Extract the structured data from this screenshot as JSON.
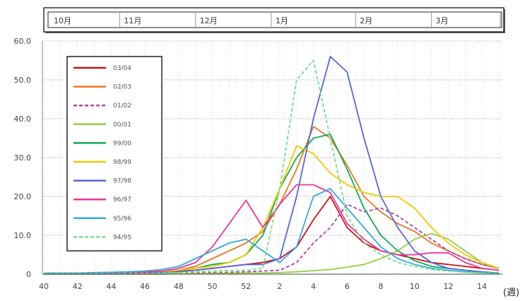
{
  "chart_data": {
    "type": "line",
    "months": [
      "10月",
      "11月",
      "12月",
      "1月",
      "2月",
      "3月"
    ],
    "x_tick_labels": [
      "40",
      "42",
      "44",
      "46",
      "48",
      "50",
      "52",
      "2",
      "4",
      "6",
      "8",
      "10",
      "12",
      "14"
    ],
    "y_tick_labels": [
      "0",
      "10.0",
      "20.0",
      "30.0",
      "40.0",
      "50.0",
      "60.0"
    ],
    "x_unit_label": "(週)",
    "ylim": [
      0,
      60
    ],
    "grid": true,
    "legend_position": "top-left",
    "weeks": [
      "40",
      "41",
      "42",
      "43",
      "44",
      "45",
      "46",
      "47",
      "48",
      "49",
      "50",
      "51",
      "52",
      "1",
      "2",
      "3",
      "4",
      "5",
      "6",
      "7",
      "8",
      "9",
      "10",
      "11",
      "12",
      "13",
      "14",
      "15"
    ],
    "series": [
      {
        "name": "03/04",
        "color": "#cc1111",
        "dash": "solid",
        "values": [
          0.2,
          0.3,
          0.3,
          0.3,
          0.3,
          0.4,
          0.4,
          0.5,
          0.8,
          1,
          1.5,
          2,
          2.5,
          3,
          4,
          7,
          14,
          20,
          12,
          8,
          6,
          5,
          4,
          3,
          2.5,
          2,
          1.5,
          1
        ]
      },
      {
        "name": "02/03",
        "color": "#ee7722",
        "dash": "solid",
        "values": [
          0.2,
          0.2,
          0.2,
          0.3,
          0.3,
          0.4,
          0.6,
          0.8,
          1,
          2,
          4,
          6,
          8,
          11,
          18,
          27,
          38,
          35,
          28,
          20,
          16,
          13,
          11,
          8,
          6,
          4,
          2.5,
          1.5
        ]
      },
      {
        "name": "01/02",
        "color": "#aa44aa",
        "dash": "dashed",
        "values": [
          0,
          0,
          0,
          0,
          0,
          0.1,
          0.1,
          0.2,
          0.3,
          0.3,
          0.4,
          0.5,
          0.6,
          0.8,
          1,
          3,
          8,
          12,
          18,
          16,
          17,
          15,
          12,
          9,
          6,
          4,
          2.5,
          1.5
        ]
      },
      {
        "name": "00/01",
        "color": "#99cc44",
        "dash": "solid",
        "values": [
          0,
          0,
          0,
          0,
          0,
          0,
          0,
          0,
          0.1,
          0.1,
          0.2,
          0.2,
          0.3,
          0.3,
          0.4,
          0.6,
          0.9,
          1.2,
          1.8,
          2.5,
          4,
          6,
          9,
          10.5,
          9,
          6,
          3,
          1.5
        ]
      },
      {
        "name": "99/00",
        "color": "#11aa55",
        "dash": "solid",
        "values": [
          0.1,
          0.1,
          0.1,
          0.2,
          0.2,
          0.3,
          0.4,
          0.6,
          1,
          1.5,
          2.5,
          3,
          5,
          10,
          22,
          30,
          35,
          36,
          27,
          17,
          10,
          6,
          3.5,
          2,
          1.5,
          1,
          0.6,
          0.3
        ]
      },
      {
        "name": "98/99",
        "color": "#eecc00",
        "dash": "solid",
        "values": [
          0.1,
          0.1,
          0.1,
          0.2,
          0.2,
          0.3,
          0.4,
          0.6,
          1,
          1.5,
          2,
          3,
          5,
          12,
          22,
          33,
          31,
          26,
          23,
          21,
          20,
          20,
          17,
          12,
          8,
          5,
          3,
          1.5
        ]
      },
      {
        "name": "97/98",
        "color": "#5566dd",
        "dash": "solid",
        "values": [
          0.1,
          0.1,
          0.1,
          0.1,
          0.2,
          0.2,
          0.3,
          0.4,
          0.6,
          1,
          1.5,
          2,
          2.5,
          2.5,
          4,
          20,
          40,
          56,
          52,
          35,
          20,
          12,
          6,
          3,
          1.5,
          1,
          0.5,
          0.3
        ]
      },
      {
        "name": "96/97",
        "color": "#ee3399",
        "dash": "solid",
        "values": [
          0.2,
          0.2,
          0.2,
          0.3,
          0.3,
          0.4,
          0.5,
          0.8,
          1.5,
          3,
          7,
          13,
          19,
          12,
          18,
          23,
          23,
          21,
          13,
          9,
          6,
          5,
          5,
          5.5,
          5.5,
          3,
          1.5,
          1
        ]
      },
      {
        "name": "95/96",
        "color": "#33aadd",
        "dash": "solid",
        "values": [
          0.3,
          0.3,
          0.3,
          0.4,
          0.5,
          0.6,
          0.8,
          1.2,
          2,
          4,
          6,
          8,
          9,
          6,
          3,
          7,
          20,
          22,
          17,
          12,
          7,
          4,
          2.5,
          1.5,
          1,
          0.6,
          0.4,
          0.2
        ]
      },
      {
        "name": "94/95",
        "color": "#77dd88",
        "dash": "dashed",
        "values": [
          0.1,
          0.1,
          0.1,
          0.1,
          0.1,
          0.2,
          0.2,
          0.3,
          0.4,
          0.6,
          0.8,
          1,
          1,
          1.5,
          22,
          50,
          55,
          35,
          15,
          8,
          5,
          3,
          2,
          1.2,
          0.8,
          0.5,
          0.3,
          0.2
        ]
      }
    ]
  }
}
